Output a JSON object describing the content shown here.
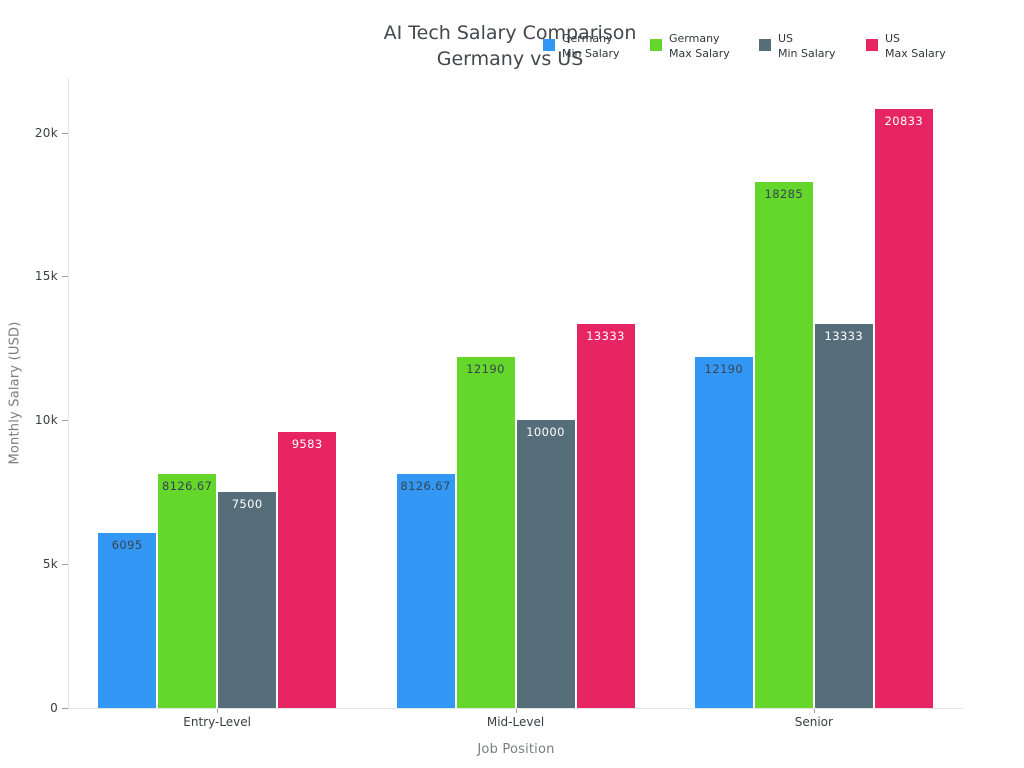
{
  "title": {
    "line1": "AI Tech Salary Comparison",
    "line2": "Germany vs US"
  },
  "chart_data": {
    "type": "bar",
    "title_lines": [
      "AI Tech Salary Comparison",
      "Germany vs US"
    ],
    "categories": [
      "Entry-Level",
      "Mid-Level",
      "Senior"
    ],
    "series": [
      {
        "name": [
          "Germany",
          "Min Salary"
        ],
        "color": "#3397F5",
        "label_color": "#36454F",
        "values": [
          6095,
          8126.67,
          12190
        ],
        "labels": [
          "6095",
          "8126.67",
          "12190"
        ]
      },
      {
        "name": [
          "Germany",
          "Max Salary"
        ],
        "color": "#65D62A",
        "label_color": "#36454F",
        "values": [
          8126.67,
          12190,
          18285
        ],
        "labels": [
          "8126.67",
          "12190",
          "18285"
        ]
      },
      {
        "name": [
          "US",
          "Min Salary"
        ],
        "color": "#556E79",
        "label_color": "#FFFFFF",
        "values": [
          7500,
          10000,
          13333
        ],
        "labels": [
          "7500",
          "10000",
          "13333"
        ]
      },
      {
        "name": [
          "US",
          "Max Salary"
        ],
        "color": "#E72562",
        "label_color": "#FFFFFF",
        "values": [
          9583,
          13333,
          20833
        ],
        "labels": [
          "9583",
          "13333",
          "20833"
        ]
      }
    ],
    "xlabel": "Job Position",
    "ylabel": "Monthly Salary (USD)",
    "ylim": [
      0,
      21900
    ],
    "yticks": [
      {
        "value": 0,
        "label": "0"
      },
      {
        "value": 5000,
        "label": "5k"
      },
      {
        "value": 10000,
        "label": "10k"
      },
      {
        "value": 15000,
        "label": "15k"
      },
      {
        "value": 20000,
        "label": "20k"
      }
    ],
    "legend_position": "top-right",
    "grid": false,
    "background": "#ffffff",
    "label_position": "inside-top"
  }
}
